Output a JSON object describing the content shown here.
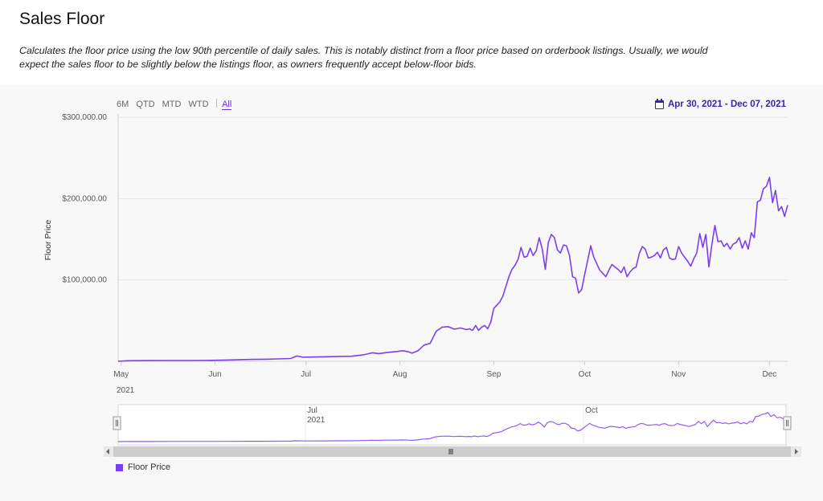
{
  "page": {
    "title": "Sales Floor",
    "description": "Calculates the floor price using the low 90th percentile of daily sales. This is notably distinct from a floor price based on orderbook listings. Usually, we would expect the sales floor to be slightly below the listings floor, as owners frequently accept below-floor bids."
  },
  "toolbar": {
    "ranges": [
      "6M",
      "QTD",
      "MTD",
      "WTD",
      "All"
    ],
    "active_range": "All",
    "date_range": "Apr 30, 2021 - Dec 07, 2021"
  },
  "colors": {
    "line": "#7b3ff2",
    "panel_bg": "#f8f8f8",
    "accent": "#3b1fb5"
  },
  "chart_data": {
    "type": "line",
    "ylabel": "Floor Price",
    "y_ticks": [
      "$100,000.00",
      "$200,000.00",
      "$300,000.00"
    ],
    "ylim": [
      0,
      300000
    ],
    "x_ticks": [
      "May",
      "Jun",
      "Jul",
      "Aug",
      "Sep",
      "Oct",
      "Nov",
      "Dec"
    ],
    "x_year_label": "2021",
    "xlim": [
      "2021-04-30",
      "2021-12-07"
    ],
    "navigator_labels": [
      {
        "month": "Jul",
        "year": "2021"
      },
      {
        "month": "Oct",
        "year": ""
      }
    ],
    "series": [
      {
        "name": "Floor Price",
        "points": [
          [
            "2021-04-30",
            0
          ],
          [
            "2021-05-03",
            700
          ],
          [
            "2021-05-10",
            900
          ],
          [
            "2021-05-17",
            1000
          ],
          [
            "2021-05-24",
            1000
          ],
          [
            "2021-05-31",
            1200
          ],
          [
            "2021-06-05",
            1600
          ],
          [
            "2021-06-12",
            2300
          ],
          [
            "2021-06-18",
            2600
          ],
          [
            "2021-06-22",
            3000
          ],
          [
            "2021-06-26",
            3500
          ],
          [
            "2021-06-28",
            6500
          ],
          [
            "2021-06-30",
            5000
          ],
          [
            "2021-07-03",
            5200
          ],
          [
            "2021-07-08",
            5600
          ],
          [
            "2021-07-12",
            6000
          ],
          [
            "2021-07-16",
            6200
          ],
          [
            "2021-07-20",
            8000
          ],
          [
            "2021-07-23",
            10500
          ],
          [
            "2021-07-25",
            9500
          ],
          [
            "2021-07-28",
            11000
          ],
          [
            "2021-07-31",
            12000
          ],
          [
            "2021-08-02",
            13000
          ],
          [
            "2021-08-04",
            11500
          ],
          [
            "2021-08-05",
            10000
          ],
          [
            "2021-08-07",
            13000
          ],
          [
            "2021-08-09",
            20000
          ],
          [
            "2021-08-11",
            22000
          ],
          [
            "2021-08-13",
            37000
          ],
          [
            "2021-08-15",
            42000
          ],
          [
            "2021-08-17",
            42500
          ],
          [
            "2021-08-19",
            39500
          ],
          [
            "2021-08-21",
            41000
          ],
          [
            "2021-08-23",
            39000
          ],
          [
            "2021-08-24",
            40000
          ],
          [
            "2021-08-25",
            38000
          ],
          [
            "2021-08-26",
            44000
          ],
          [
            "2021-08-27",
            38000
          ],
          [
            "2021-08-28",
            42000
          ],
          [
            "2021-08-29",
            44000
          ],
          [
            "2021-08-30",
            40000
          ],
          [
            "2021-08-31",
            48000
          ],
          [
            "2021-09-01",
            65000
          ],
          [
            "2021-09-03",
            73000
          ],
          [
            "2021-09-04",
            80000
          ],
          [
            "2021-09-06",
            104000
          ],
          [
            "2021-09-07",
            113000
          ],
          [
            "2021-09-08",
            118000
          ],
          [
            "2021-09-09",
            125000
          ],
          [
            "2021-09-10",
            140000
          ],
          [
            "2021-09-11",
            128000
          ],
          [
            "2021-09-12",
            129000
          ],
          [
            "2021-09-13",
            139000
          ],
          [
            "2021-09-14",
            130000
          ],
          [
            "2021-09-15",
            136000
          ],
          [
            "2021-09-16",
            152000
          ],
          [
            "2021-09-17",
            138000
          ],
          [
            "2021-09-18",
            113000
          ],
          [
            "2021-09-19",
            146000
          ],
          [
            "2021-09-20",
            156000
          ],
          [
            "2021-09-21",
            152000
          ],
          [
            "2021-09-22",
            137000
          ],
          [
            "2021-09-23",
            133000
          ],
          [
            "2021-09-24",
            143000
          ],
          [
            "2021-09-25",
            142000
          ],
          [
            "2021-09-26",
            130000
          ],
          [
            "2021-09-27",
            104000
          ],
          [
            "2021-09-28",
            102000
          ],
          [
            "2021-09-29",
            84000
          ],
          [
            "2021-09-30",
            88000
          ],
          [
            "2021-10-01",
            107000
          ],
          [
            "2021-10-02",
            124000
          ],
          [
            "2021-10-03",
            142000
          ],
          [
            "2021-10-04",
            128000
          ],
          [
            "2021-10-05",
            120000
          ],
          [
            "2021-10-06",
            112000
          ],
          [
            "2021-10-07",
            108000
          ],
          [
            "2021-10-08",
            104000
          ],
          [
            "2021-10-09",
            112000
          ],
          [
            "2021-10-10",
            119000
          ],
          [
            "2021-10-11",
            116000
          ],
          [
            "2021-10-12",
            113000
          ],
          [
            "2021-10-13",
            109000
          ],
          [
            "2021-10-14",
            116000
          ],
          [
            "2021-10-15",
            104000
          ],
          [
            "2021-10-16",
            110000
          ],
          [
            "2021-10-17",
            114000
          ],
          [
            "2021-10-18",
            116000
          ],
          [
            "2021-10-19",
            132000
          ],
          [
            "2021-10-20",
            141000
          ],
          [
            "2021-10-21",
            138000
          ],
          [
            "2021-10-22",
            127000
          ],
          [
            "2021-10-23",
            128000
          ],
          [
            "2021-10-24",
            130000
          ],
          [
            "2021-10-25",
            134000
          ],
          [
            "2021-10-26",
            127000
          ],
          [
            "2021-10-27",
            137000
          ],
          [
            "2021-10-28",
            140000
          ],
          [
            "2021-10-29",
            127000
          ],
          [
            "2021-10-30",
            125000
          ],
          [
            "2021-10-31",
            126000
          ],
          [
            "2021-11-01",
            141000
          ],
          [
            "2021-11-02",
            133000
          ],
          [
            "2021-11-03",
            128000
          ],
          [
            "2021-11-04",
            123000
          ],
          [
            "2021-11-05",
            117000
          ],
          [
            "2021-11-06",
            126000
          ],
          [
            "2021-11-07",
            133000
          ],
          [
            "2021-11-08",
            157000
          ],
          [
            "2021-11-09",
            140000
          ],
          [
            "2021-11-10",
            156000
          ],
          [
            "2021-11-11",
            116000
          ],
          [
            "2021-11-12",
            144000
          ],
          [
            "2021-11-13",
            167000
          ],
          [
            "2021-11-14",
            147000
          ],
          [
            "2021-11-15",
            148000
          ],
          [
            "2021-11-16",
            141000
          ],
          [
            "2021-11-17",
            145000
          ],
          [
            "2021-11-18",
            138000
          ],
          [
            "2021-11-19",
            144000
          ],
          [
            "2021-11-20",
            146000
          ],
          [
            "2021-11-21",
            152000
          ],
          [
            "2021-11-22",
            139000
          ],
          [
            "2021-11-23",
            148000
          ],
          [
            "2021-11-24",
            138000
          ],
          [
            "2021-11-25",
            158000
          ],
          [
            "2021-11-26",
            152000
          ],
          [
            "2021-11-27",
            196000
          ],
          [
            "2021-11-28",
            198000
          ],
          [
            "2021-11-29",
            212000
          ],
          [
            "2021-11-30",
            215000
          ],
          [
            "2021-12-01",
            226000
          ],
          [
            "2021-12-02",
            195000
          ],
          [
            "2021-12-03",
            210000
          ],
          [
            "2021-12-04",
            185000
          ],
          [
            "2021-12-05",
            190000
          ],
          [
            "2021-12-06",
            178000
          ],
          [
            "2021-12-07",
            192000
          ]
        ]
      }
    ]
  },
  "legend": {
    "label": "Floor Price"
  }
}
